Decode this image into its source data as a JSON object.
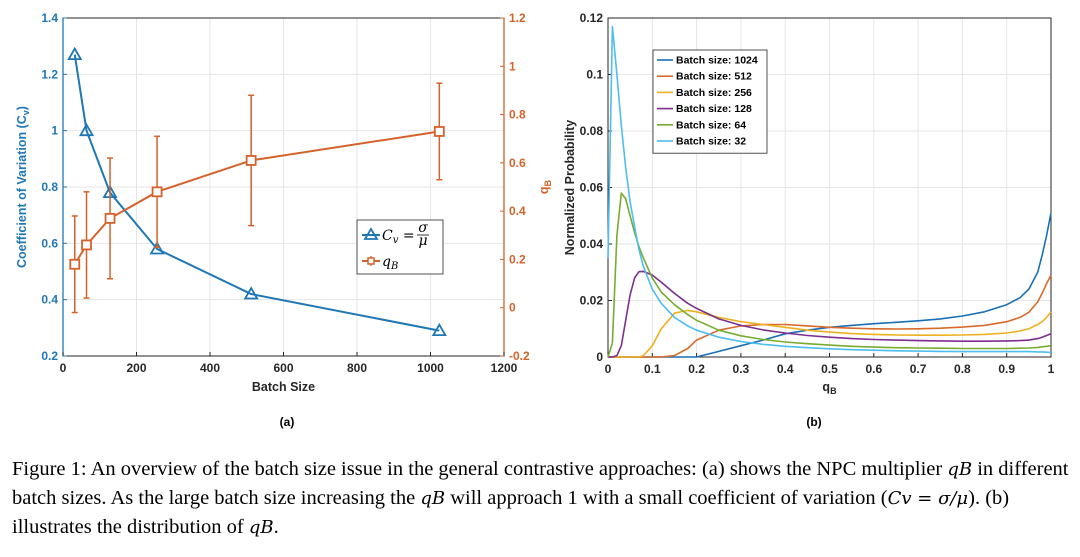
{
  "colors": {
    "cv": "#1f77b4",
    "qb": "#d4622a",
    "bs1024": "#1a6fb5",
    "bs512": "#d86a2b",
    "bs256": "#edb120",
    "bs128": "#7e2f8e",
    "bs64": "#77ac30",
    "bs32": "#4dbeee",
    "grid": "#e6e6e6"
  },
  "panels": {
    "a": "(a)",
    "b": "(b)"
  },
  "caption": {
    "p1": "Figure 1: An overview of the batch size issue in the general contrastive approaches: (a) shows the NPC multiplier ",
    "m1": "qB",
    "p2": " in different batch sizes. As the large batch size increasing the ",
    "m2": "qB",
    "p3": " will approach 1 with a small coefficient of variation (",
    "m3": "Cv = σ/μ",
    "p4": "). (b) illustrates the distribution of ",
    "m4": "qB",
    "p5": "."
  },
  "chart_data": [
    {
      "type": "line",
      "panel": "(a)",
      "xlabel": "Batch Size",
      "ylabel": "Coefficient of Variation (C_v)",
      "y2label": "q_B",
      "xlim": [
        0,
        1200
      ],
      "ylim": [
        0.2,
        1.4
      ],
      "y2lim": [
        -0.2,
        1.2
      ],
      "xticks": [
        0,
        200,
        400,
        600,
        800,
        1000,
        1200
      ],
      "yticks": [
        0.2,
        0.4,
        0.6,
        0.8,
        1,
        1.2,
        1.4
      ],
      "y2ticks": [
        -0.2,
        0,
        0.2,
        0.4,
        0.6,
        0.8,
        1,
        1.2
      ],
      "x": [
        32,
        64,
        128,
        256,
        512,
        1024
      ],
      "series": [
        {
          "name": "C_v = σ/μ",
          "axis": "left",
          "marker": "triangle",
          "color": "#1f77b4",
          "values": [
            1.27,
            1.0,
            0.78,
            0.58,
            0.42,
            0.29
          ]
        },
        {
          "name": "q_B",
          "axis": "right",
          "marker": "square",
          "color": "#d4622a",
          "values": [
            0.18,
            0.26,
            0.37,
            0.48,
            0.61,
            0.73
          ],
          "errors": [
            0.2,
            0.22,
            0.25,
            0.23,
            0.27,
            0.2
          ]
        }
      ],
      "legend": [
        {
          "text": "Cv = σ/μ"
        },
        {
          "text": "qB"
        }
      ],
      "legend_position": "center-right",
      "grid": true
    },
    {
      "type": "line",
      "panel": "(b)",
      "xlabel": "q_B",
      "ylabel": "Normalized Probability",
      "xlim": [
        0,
        1
      ],
      "ylim": [
        0,
        0.12
      ],
      "xticks": [
        0,
        0.1,
        0.2,
        0.3,
        0.4,
        0.5,
        0.6,
        0.7,
        0.8,
        0.9,
        1
      ],
      "yticks": [
        0,
        0.02,
        0.04,
        0.06,
        0.08,
        0.1,
        0.12
      ],
      "x": [
        0,
        0.01,
        0.02,
        0.03,
        0.04,
        0.05,
        0.06,
        0.07,
        0.08,
        0.1,
        0.12,
        0.15,
        0.18,
        0.2,
        0.25,
        0.3,
        0.35,
        0.4,
        0.45,
        0.5,
        0.55,
        0.6,
        0.65,
        0.7,
        0.75,
        0.8,
        0.85,
        0.9,
        0.93,
        0.95,
        0.97,
        0.98,
        0.99,
        1.0
      ],
      "series": [
        {
          "name": "Batch size: 1024",
          "color": "#1a6fb5",
          "values": [
            0,
            0,
            0,
            0,
            0,
            0,
            0,
            0,
            0,
            0,
            0,
            0,
            0,
            0,
            0.002,
            0.004,
            0.006,
            0.0082,
            0.0095,
            0.0105,
            0.0112,
            0.0118,
            0.0123,
            0.0128,
            0.0135,
            0.0145,
            0.016,
            0.0185,
            0.021,
            0.024,
            0.03,
            0.036,
            0.043,
            0.051
          ]
        },
        {
          "name": "Batch size: 512",
          "color": "#d86a2b",
          "values": [
            0,
            0,
            0,
            0,
            0,
            0,
            0,
            0,
            0,
            0,
            0,
            0.0005,
            0.003,
            0.006,
            0.0095,
            0.011,
            0.0115,
            0.0115,
            0.011,
            0.0105,
            0.0102,
            0.01,
            0.0099,
            0.01,
            0.0102,
            0.0106,
            0.0112,
            0.0125,
            0.014,
            0.0158,
            0.0195,
            0.0225,
            0.026,
            0.029
          ]
        },
        {
          "name": "Batch size: 256",
          "color": "#edb120",
          "values": [
            0,
            0,
            0,
            0,
            0,
            0,
            0,
            0,
            0.0005,
            0.004,
            0.01,
            0.0155,
            0.0165,
            0.016,
            0.014,
            0.0125,
            0.0115,
            0.0105,
            0.0095,
            0.0088,
            0.0083,
            0.008,
            0.0078,
            0.0077,
            0.0077,
            0.0078,
            0.008,
            0.0085,
            0.0092,
            0.01,
            0.0115,
            0.0125,
            0.014,
            0.016
          ]
        },
        {
          "name": "Batch size: 128",
          "color": "#7e2f8e",
          "values": [
            0,
            0,
            0.0005,
            0.004,
            0.013,
            0.022,
            0.028,
            0.0302,
            0.0303,
            0.029,
            0.0265,
            0.0225,
            0.019,
            0.0172,
            0.0135,
            0.0112,
            0.0096,
            0.0085,
            0.0076,
            0.007,
            0.0065,
            0.0062,
            0.006,
            0.0058,
            0.0057,
            0.0056,
            0.0056,
            0.0057,
            0.0058,
            0.006,
            0.0065,
            0.007,
            0.0076,
            0.0082
          ]
        },
        {
          "name": "Batch size: 64",
          "color": "#77ac30",
          "values": [
            0,
            0.005,
            0.043,
            0.058,
            0.056,
            0.05,
            0.044,
            0.039,
            0.035,
            0.028,
            0.023,
            0.0185,
            0.015,
            0.013,
            0.0095,
            0.0075,
            0.0062,
            0.0053,
            0.0047,
            0.0042,
            0.0038,
            0.0035,
            0.0033,
            0.0032,
            0.0031,
            0.003,
            0.003,
            0.003,
            0.0031,
            0.0032,
            0.0034,
            0.0036,
            0.0038,
            0.004
          ]
        },
        {
          "name": "Batch size: 32",
          "color": "#4dbeee",
          "values": [
            0.035,
            0.117,
            0.1,
            0.082,
            0.067,
            0.055,
            0.046,
            0.038,
            0.032,
            0.024,
            0.019,
            0.014,
            0.011,
            0.0095,
            0.007,
            0.0055,
            0.0045,
            0.0038,
            0.0033,
            0.0029,
            0.0026,
            0.0024,
            0.0022,
            0.0021,
            0.002,
            0.0019,
            0.0019,
            0.0019,
            0.0019,
            0.0019,
            0.0018,
            0.0018,
            0.0017,
            0.0016
          ]
        }
      ],
      "legend_position": "top-left",
      "grid": true
    }
  ]
}
